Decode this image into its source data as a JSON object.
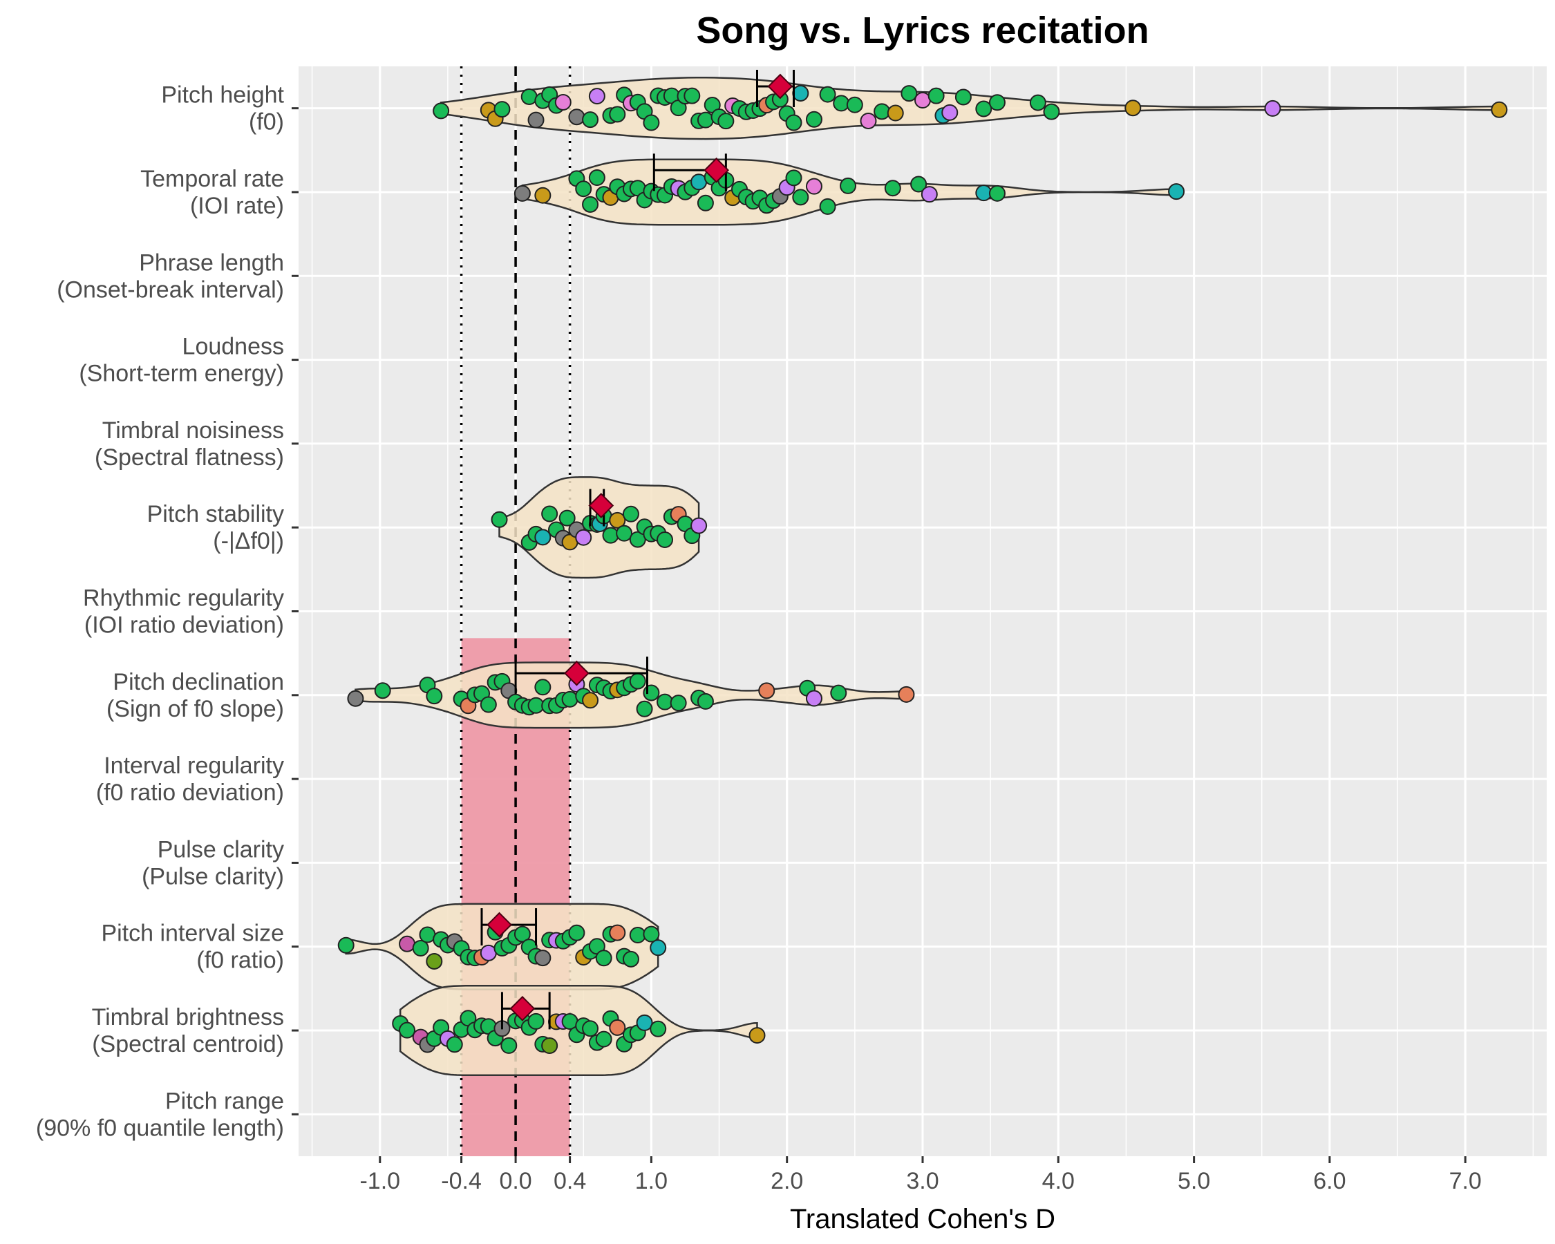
{
  "chart_data": {
    "type": "violin",
    "title": "Song vs. Lyrics recitation",
    "xlabel": "Translated Cohen's D",
    "ylabel": "",
    "xlim": [
      -1.6,
      7.6
    ],
    "x_ticks": [
      -1.0,
      -0.4,
      0.0,
      0.4,
      1.0,
      2.0,
      3.0,
      4.0,
      5.0,
      6.0,
      7.0
    ],
    "x_tick_labels": [
      "-1.0",
      "-0.4",
      "0.0",
      "0.4",
      "1.0",
      "2.0",
      "3.0",
      "4.0",
      "5.0",
      "6.0",
      "7.0"
    ],
    "reference_lines": {
      "dashed": [
        0.0
      ],
      "dotted": [
        -0.4,
        0.4
      ]
    },
    "equivalence_band": [
      -0.4,
      0.4
    ],
    "band_color": "#ee9aa8",
    "violin_fill": "#f4e3c5",
    "mean_marker_color": "#d6003a",
    "grid": true,
    "background": "#ebebeb",
    "features": [
      {
        "name": "Pitch height",
        "sub": "(f0)",
        "has_data": true,
        "mean": 1.95,
        "ci": [
          1.78,
          2.05
        ],
        "range": [
          -0.55,
          7.25
        ],
        "width": 0.18,
        "points": [
          -0.55,
          -0.2,
          -0.15,
          -0.1,
          0.1,
          0.15,
          0.2,
          0.25,
          0.3,
          0.35,
          0.45,
          0.55,
          0.6,
          0.7,
          0.75,
          0.8,
          0.85,
          0.9,
          0.95,
          1.0,
          1.05,
          1.1,
          1.15,
          1.2,
          1.25,
          1.3,
          1.35,
          1.4,
          1.45,
          1.5,
          1.55,
          1.6,
          1.65,
          1.7,
          1.75,
          1.8,
          1.85,
          1.9,
          1.95,
          2.0,
          2.05,
          2.1,
          2.2,
          2.3,
          2.4,
          2.5,
          2.6,
          2.7,
          2.8,
          2.9,
          3.0,
          3.1,
          3.15,
          3.2,
          3.3,
          3.45,
          3.55,
          3.85,
          3.95,
          4.55,
          5.58,
          7.25
        ],
        "colors": [
          "#1aba57",
          "#c99a1a",
          "#c99a1a",
          "#1aba57",
          "#1aba57",
          "#7d7d7d",
          "#1aba57",
          "#1aba57",
          "#1aba57",
          "#e67fd7",
          "#7d7d7d",
          "#1aba57",
          "#c77ff5",
          "#1aba57",
          "#1aba57",
          "#1aba57",
          "#e67fd7",
          "#1aba57",
          "#1aba57",
          "#1aba57",
          "#1aba57",
          "#1aba57",
          "#1aba57",
          "#1aba57",
          "#1aba57",
          "#1aba57",
          "#1aba57",
          "#1aba57",
          "#1aba57",
          "#1aba57",
          "#1aba57",
          "#e67fd7",
          "#1aba57",
          "#1aba57",
          "#1aba57",
          "#1aba57",
          "#e6805a",
          "#1aba57",
          "#1aba57",
          "#1aba57",
          "#1aba57",
          "#1ab3b3",
          "#1aba57",
          "#1aba57",
          "#1aba57",
          "#1aba57",
          "#e67fd7",
          "#1aba57",
          "#c99a1a",
          "#1aba57",
          "#e67fd7",
          "#1aba57",
          "#1ab3b3",
          "#c77ff5",
          "#1aba57",
          "#1aba57",
          "#1aba57",
          "#1aba57",
          "#1aba57",
          "#c99a1a",
          "#c77ff5",
          "#c99a1a"
        ]
      },
      {
        "name": "Temporal rate",
        "sub": "(IOI rate)",
        "has_data": true,
        "mean": 1.48,
        "ci": [
          1.02,
          1.55
        ],
        "range": [
          0.05,
          4.87
        ],
        "width": 0.2,
        "points": [
          0.05,
          0.2,
          0.45,
          0.5,
          0.55,
          0.6,
          0.65,
          0.7,
          0.75,
          0.8,
          0.85,
          0.9,
          0.95,
          1.0,
          1.05,
          1.1,
          1.15,
          1.2,
          1.25,
          1.3,
          1.35,
          1.4,
          1.45,
          1.5,
          1.55,
          1.6,
          1.65,
          1.7,
          1.75,
          1.8,
          1.85,
          1.9,
          1.95,
          2.0,
          2.05,
          2.1,
          2.2,
          2.3,
          2.45,
          2.78,
          2.97,
          3.05,
          3.45,
          3.55,
          4.87
        ],
        "colors": [
          "#7d7d7d",
          "#c99a1a",
          "#1aba57",
          "#1aba57",
          "#1aba57",
          "#1aba57",
          "#1aba57",
          "#c99a1a",
          "#1aba57",
          "#1aba57",
          "#1aba57",
          "#1aba57",
          "#1aba57",
          "#1aba57",
          "#1aba57",
          "#1aba57",
          "#1aba57",
          "#c77ff5",
          "#1aba57",
          "#1aba57",
          "#1ab3b3",
          "#1aba57",
          "#1aba57",
          "#1aba57",
          "#1aba57",
          "#c99a1a",
          "#1aba57",
          "#1aba57",
          "#1aba57",
          "#1aba57",
          "#1aba57",
          "#1aba57",
          "#7d7d7d",
          "#c77ff5",
          "#1aba57",
          "#1aba57",
          "#e67fd7",
          "#1aba57",
          "#1aba57",
          "#1aba57",
          "#1aba57",
          "#c77ff5",
          "#1ab3b3",
          "#1aba57",
          "#1ab3b3"
        ]
      },
      {
        "name": "Phrase length",
        "sub": "(Onset-break interval)",
        "has_data": false
      },
      {
        "name": "Loudness",
        "sub": "(Short-term energy)",
        "has_data": false
      },
      {
        "name": "Timbral noisiness",
        "sub": "(Spectral flatness)",
        "has_data": false
      },
      {
        "name": "Pitch stability",
        "sub": "(-|Δf0|)",
        "has_data": true,
        "mean": 0.63,
        "ci": [
          0.55,
          0.65
        ],
        "range": [
          -0.12,
          1.35
        ],
        "width": 0.45,
        "points": [
          -0.12,
          0.1,
          0.15,
          0.2,
          0.25,
          0.3,
          0.35,
          0.38,
          0.4,
          0.45,
          0.5,
          0.55,
          0.6,
          0.62,
          0.65,
          0.7,
          0.75,
          0.8,
          0.85,
          0.9,
          0.95,
          1.0,
          1.05,
          1.1,
          1.15,
          1.2,
          1.25,
          1.3,
          1.35
        ],
        "colors": [
          "#1aba57",
          "#1aba57",
          "#1aba57",
          "#1ab3b3",
          "#1aba57",
          "#1aba57",
          "#7d7d7d",
          "#1aba57",
          "#c99a1a",
          "#7d7d7d",
          "#c77ff5",
          "#1aba57",
          "#1aba57",
          "#1ab3b3",
          "#1aba57",
          "#1aba57",
          "#c99a1a",
          "#1aba57",
          "#1aba57",
          "#1aba57",
          "#1aba57",
          "#1aba57",
          "#1aba57",
          "#1aba57",
          "#1aba57",
          "#e6805a",
          "#1aba57",
          "#1aba57",
          "#c77ff5"
        ]
      },
      {
        "name": "Rhythmic regularity",
        "sub": "(IOI ratio deviation)",
        "has_data": false
      },
      {
        "name": "Pitch declination",
        "sub": "(Sign of f0 slope)",
        "has_data": true,
        "mean": 0.45,
        "ci": [
          0.0,
          0.97
        ],
        "range": [
          -1.18,
          2.88
        ],
        "width": 0.2,
        "points": [
          -1.18,
          -0.98,
          -0.65,
          -0.6,
          -0.4,
          -0.35,
          -0.3,
          -0.25,
          -0.2,
          -0.15,
          -0.1,
          -0.05,
          0.0,
          0.05,
          0.1,
          0.15,
          0.2,
          0.25,
          0.3,
          0.35,
          0.4,
          0.45,
          0.5,
          0.55,
          0.6,
          0.65,
          0.7,
          0.75,
          0.8,
          0.85,
          0.9,
          0.95,
          1.0,
          1.1,
          1.2,
          1.35,
          1.4,
          1.85,
          2.15,
          2.2,
          2.38,
          2.88
        ],
        "colors": [
          "#7d7d7d",
          "#1aba57",
          "#1aba57",
          "#1aba57",
          "#1aba57",
          "#e6805a",
          "#1aba57",
          "#1aba57",
          "#1aba57",
          "#1aba57",
          "#1aba57",
          "#7d7d7d",
          "#1aba57",
          "#1aba57",
          "#1aba57",
          "#1aba57",
          "#1aba57",
          "#1aba57",
          "#1aba57",
          "#1aba57",
          "#1aba57",
          "#c77ff5",
          "#1aba57",
          "#c99a1a",
          "#1aba57",
          "#1aba57",
          "#1aba57",
          "#c99a1a",
          "#1aba57",
          "#1aba57",
          "#1aba57",
          "#1aba57",
          "#1aba57",
          "#1aba57",
          "#1aba57",
          "#1aba57",
          "#1aba57",
          "#e6805a",
          "#1aba57",
          "#c77ff5",
          "#1aba57",
          "#e6805a"
        ]
      },
      {
        "name": "Interval regularity",
        "sub": "(f0 ratio deviation)",
        "has_data": false
      },
      {
        "name": "Pulse clarity",
        "sub": "(Pulse clarity)",
        "has_data": false
      },
      {
        "name": "Pitch interval size",
        "sub": "(f0 ratio)",
        "has_data": true,
        "mean": -0.12,
        "ci": [
          -0.25,
          0.15
        ],
        "range": [
          -1.25,
          1.05
        ],
        "width": 0.3,
        "points": [
          -1.25,
          -0.8,
          -0.7,
          -0.65,
          -0.6,
          -0.55,
          -0.5,
          -0.45,
          -0.4,
          -0.35,
          -0.3,
          -0.25,
          -0.2,
          -0.15,
          -0.1,
          -0.05,
          0.0,
          0.05,
          0.1,
          0.15,
          0.2,
          0.25,
          0.3,
          0.35,
          0.4,
          0.45,
          0.5,
          0.55,
          0.6,
          0.65,
          0.7,
          0.75,
          0.8,
          0.85,
          0.9,
          1.0,
          1.05
        ],
        "colors": [
          "#1aba57",
          "#c85aa8",
          "#1aba57",
          "#1aba57",
          "#6aa01a",
          "#1aba57",
          "#1aba57",
          "#7d7d7d",
          "#1aba57",
          "#1aba57",
          "#1aba57",
          "#e6805a",
          "#c77ff5",
          "#1aba57",
          "#1aba57",
          "#1aba57",
          "#1aba57",
          "#1aba57",
          "#1aba57",
          "#1aba57",
          "#7d7d7d",
          "#1aba57",
          "#c77ff5",
          "#1aba57",
          "#1aba57",
          "#1aba57",
          "#c99a1a",
          "#1aba57",
          "#1aba57",
          "#1aba57",
          "#1aba57",
          "#e6805a",
          "#1aba57",
          "#1aba57",
          "#1aba57",
          "#1aba57",
          "#1ab3b3"
        ]
      },
      {
        "name": "Timbral brightness",
        "sub": "(Spectral centroid)",
        "has_data": true,
        "mean": 0.05,
        "ci": [
          -0.1,
          0.25
        ],
        "range": [
          -0.85,
          1.78
        ],
        "width": 0.32,
        "points": [
          -0.85,
          -0.8,
          -0.7,
          -0.65,
          -0.6,
          -0.55,
          -0.5,
          -0.45,
          -0.4,
          -0.35,
          -0.3,
          -0.25,
          -0.2,
          -0.15,
          -0.1,
          -0.05,
          0.0,
          0.05,
          0.1,
          0.15,
          0.2,
          0.25,
          0.3,
          0.35,
          0.4,
          0.45,
          0.5,
          0.55,
          0.6,
          0.65,
          0.7,
          0.75,
          0.8,
          0.85,
          0.9,
          0.95,
          1.05,
          1.78
        ],
        "colors": [
          "#1aba57",
          "#1aba57",
          "#c85aa8",
          "#7d7d7d",
          "#1aba57",
          "#1aba57",
          "#c77ff5",
          "#1aba57",
          "#1aba57",
          "#1aba57",
          "#1aba57",
          "#1aba57",
          "#1aba57",
          "#1aba57",
          "#7d7d7d",
          "#1aba57",
          "#1aba57",
          "#1aba57",
          "#1aba57",
          "#1aba57",
          "#1aba57",
          "#6aa01a",
          "#c99a1a",
          "#c77ff5",
          "#1aba57",
          "#1aba57",
          "#1aba57",
          "#1aba57",
          "#1aba57",
          "#1aba57",
          "#1aba57",
          "#e6805a",
          "#1aba57",
          "#1aba57",
          "#1aba57",
          "#1ab3b3",
          "#1aba57",
          "#c99a1a"
        ]
      },
      {
        "name": "Pitch range",
        "sub": "(90% f0 quantile length)",
        "has_data": false
      }
    ]
  }
}
